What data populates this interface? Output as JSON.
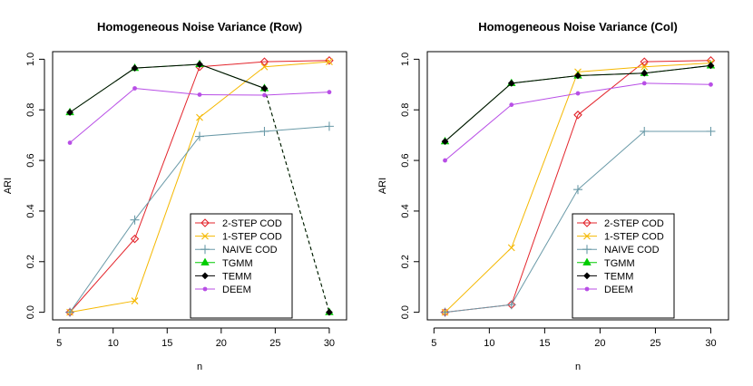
{
  "chart_data": [
    {
      "type": "line",
      "title": "Homogeneous Noise Variance (Row)",
      "xlabel": "n",
      "ylabel": "ARI",
      "xlim": [
        4.4,
        31.6
      ],
      "ylim": [
        -0.03,
        1.03
      ],
      "xticks": [
        5,
        10,
        15,
        20,
        25,
        30
      ],
      "yticks": [
        0.0,
        0.2,
        0.4,
        0.6,
        0.8,
        1.0
      ],
      "xtick_labels": [
        "5",
        "10",
        "15",
        "20",
        "25",
        "30"
      ],
      "ytick_labels": [
        "0.0",
        "0.2",
        "0.4",
        "0.6",
        "0.8",
        "1.0"
      ],
      "x": [
        6,
        12,
        18,
        24,
        30
      ],
      "legend_position": "bottom-right",
      "series": [
        {
          "name": "2-STEP COD",
          "values": [
            0.0,
            0.29,
            0.97,
            0.99,
            0.995
          ],
          "color": "#e3242b",
          "marker": "diamond-open",
          "dashed_from": -1
        },
        {
          "name": "1-STEP COD",
          "values": [
            0.0,
            0.045,
            0.77,
            0.97,
            0.99
          ],
          "color": "#f5b800",
          "marker": "x",
          "dashed_from": -1
        },
        {
          "name": "NAIVE COD",
          "values": [
            0.0,
            0.365,
            0.695,
            0.715,
            0.735
          ],
          "color": "#6a9aa8",
          "marker": "plus",
          "dashed_from": -1
        },
        {
          "name": "TGMM",
          "values": [
            0.79,
            0.965,
            0.98,
            0.885,
            0.0
          ],
          "color": "#00cc00",
          "marker": "triangle",
          "dashed_from": 3
        },
        {
          "name": "TEMM",
          "values": [
            0.79,
            0.965,
            0.98,
            0.885,
            0.0
          ],
          "color": "#000000",
          "marker": "diamond-filled",
          "dashed_from": 3
        },
        {
          "name": "DEEM",
          "values": [
            0.67,
            0.885,
            0.86,
            0.858,
            0.87
          ],
          "color": "#b84ee6",
          "marker": "dot",
          "dashed_from": -1
        }
      ]
    },
    {
      "type": "line",
      "title": "Homogeneous Noise Variance (Col)",
      "xlabel": "n",
      "ylabel": "ARI",
      "xlim": [
        4.4,
        31.6
      ],
      "ylim": [
        -0.03,
        1.03
      ],
      "xticks": [
        5,
        10,
        15,
        20,
        25,
        30
      ],
      "yticks": [
        0.0,
        0.2,
        0.4,
        0.6,
        0.8,
        1.0
      ],
      "xtick_labels": [
        "5",
        "10",
        "15",
        "20",
        "25",
        "30"
      ],
      "ytick_labels": [
        "0.0",
        "0.2",
        "0.4",
        "0.6",
        "0.8",
        "1.0"
      ],
      "x": [
        6,
        12,
        18,
        24,
        30
      ],
      "legend_position": "bottom-right",
      "series": [
        {
          "name": "2-STEP COD",
          "values": [
            0.0,
            0.03,
            0.78,
            0.99,
            0.995
          ],
          "color": "#e3242b",
          "marker": "diamond-open",
          "dashed_from": -1
        },
        {
          "name": "1-STEP COD",
          "values": [
            0.0,
            0.255,
            0.95,
            0.97,
            0.985
          ],
          "color": "#f5b800",
          "marker": "x",
          "dashed_from": -1
        },
        {
          "name": "NAIVE COD",
          "values": [
            0.0,
            0.03,
            0.485,
            0.715,
            0.715
          ],
          "color": "#6a9aa8",
          "marker": "plus",
          "dashed_from": -1
        },
        {
          "name": "TGMM",
          "values": [
            0.675,
            0.905,
            0.935,
            0.945,
            0.975
          ],
          "color": "#00cc00",
          "marker": "triangle",
          "dashed_from": -1
        },
        {
          "name": "TEMM",
          "values": [
            0.675,
            0.905,
            0.935,
            0.945,
            0.975
          ],
          "color": "#000000",
          "marker": "diamond-filled",
          "dashed_from": -1
        },
        {
          "name": "DEEM",
          "values": [
            0.6,
            0.82,
            0.865,
            0.905,
            0.9
          ],
          "color": "#b84ee6",
          "marker": "dot",
          "dashed_from": -1
        }
      ]
    }
  ]
}
